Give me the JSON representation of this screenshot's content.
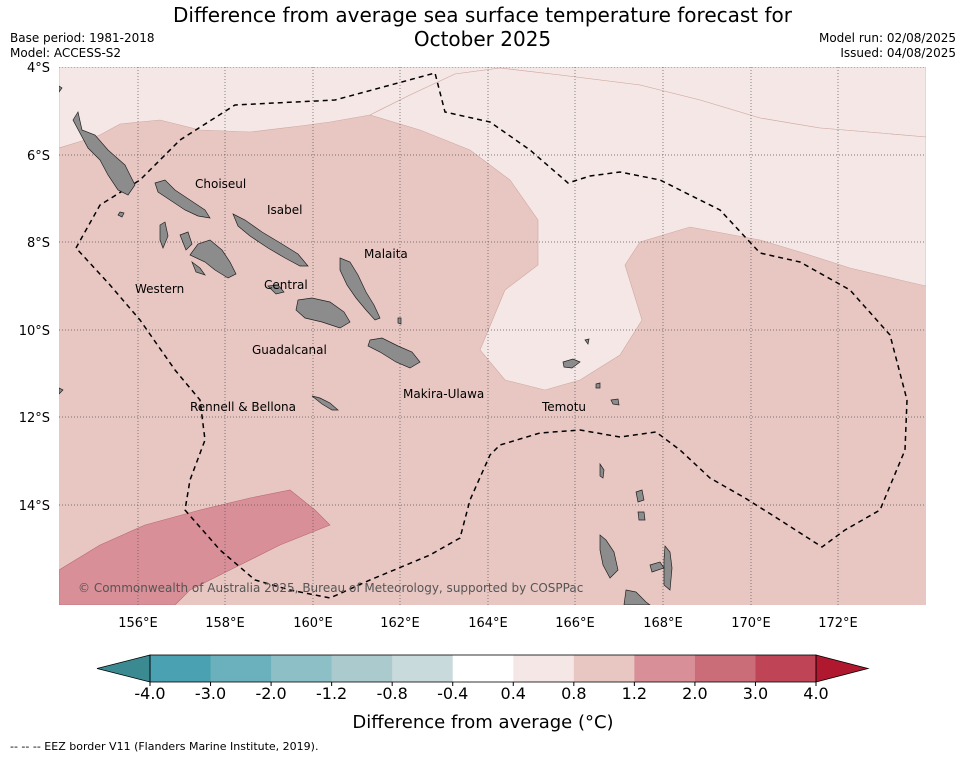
{
  "title_line1": "Difference from average sea surface temperature forecast for",
  "title_line2": "October 2025",
  "meta_left": {
    "base_period": "Base period: 1981-2018",
    "model": "Model: ACCESS-S2"
  },
  "meta_right": {
    "model_run": "Model run: 02/08/2025",
    "issued": "Issued: 04/08/2025"
  },
  "map": {
    "lat_labels": [
      "4°S",
      "6°S",
      "8°S",
      "10°S",
      "12°S",
      "14°S"
    ],
    "lon_labels": [
      "156°E",
      "158°E",
      "160°E",
      "162°E",
      "164°E",
      "166°E",
      "168°E",
      "170°E",
      "172°E"
    ],
    "colors": {
      "ocean_base": "#e8c7c2",
      "ocean_light": "#f5e7e5",
      "ocean_warm": "#d98f97",
      "land": "#8c8c8c"
    },
    "provinces": [
      "Choiseul",
      "Isabel",
      "Malaita",
      "Western",
      "Central",
      "Guadalcanal",
      "Makira-Ulawa",
      "Rennell & Bellona",
      "Temotu"
    ],
    "copyright": "© Commonwealth of Australia 2025, Bureau of Meteorology, supported by COSPPac"
  },
  "legend": {
    "ticks": [
      "-4.0",
      "-3.0",
      "-2.0",
      "-1.2",
      "-0.8",
      "-0.4",
      "0.4",
      "0.8",
      "1.2",
      "2.0",
      "3.0",
      "4.0"
    ],
    "colors": [
      "#49a1b1",
      "#6ab0bd",
      "#8dbfc7",
      "#abcacd",
      "#c9dadd",
      "#ffffff",
      "#f5e7e5",
      "#e8c7c2",
      "#d98f97",
      "#cb6d78",
      "#bf4556"
    ],
    "low_color": "#3b8a91",
    "high_color": "#b01830",
    "label": "Difference from average (°C)"
  },
  "footnote": "--  --  -- EEZ border V11 (Flanders Marine Institute, 2019)."
}
